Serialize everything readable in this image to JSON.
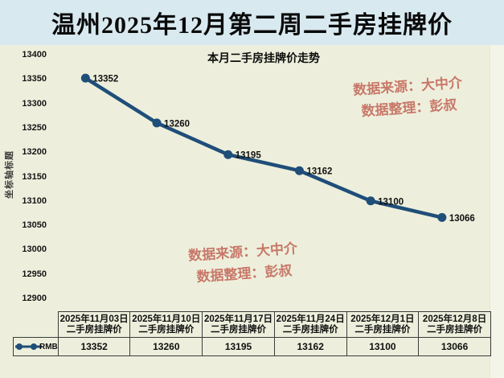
{
  "page": {
    "title": "温州2025年12月第二周二手房挂牌价"
  },
  "chart": {
    "title": "本月二手房挂牌价走势",
    "y_axis_title": "坐标轴标题",
    "legend_series": "RMB",
    "watermark": {
      "line1": "数据来源：大中介",
      "line2": "数据整理：彭叔"
    }
  },
  "chart_data": {
    "type": "line",
    "title": "本月二手房挂牌价走势",
    "categories": [
      "2025年11月03日",
      "2025年11月10日",
      "2025年11月17日",
      "2025年11月24日",
      "2025年12月1日",
      "2025年12月8日"
    ],
    "category_subtitle": "二手房挂牌价",
    "series": [
      {
        "name": "RMB",
        "values": [
          13352,
          13260,
          13195,
          13162,
          13100,
          13066
        ]
      }
    ],
    "ylim": [
      12900,
      13400
    ],
    "y_ticks": [
      13400,
      13350,
      13300,
      13250,
      13200,
      13150,
      13100,
      13050,
      13000,
      12950,
      12900
    ],
    "grid": false,
    "legend_position": "data-table-left",
    "line_color": "#1f4e79",
    "label_color": "#111111"
  },
  "table": {
    "columns": [
      {
        "header_line1": "2025年11月03日",
        "header_line2": "二手房挂牌价",
        "value": "13352"
      },
      {
        "header_line1": "2025年11月10日",
        "header_line2": "二手房挂牌价",
        "value": "13260"
      },
      {
        "header_line1": "2025年11月17日",
        "header_line2": "二手房挂牌价",
        "value": "13195"
      },
      {
        "header_line1": "2025年11月24日",
        "header_line2": "二手房挂牌价",
        "value": "13162"
      },
      {
        "header_line1": "2025年12月1日",
        "header_line2": "二手房挂牌价",
        "value": "13100"
      },
      {
        "header_line1": "2025年12月8日",
        "header_line2": "二手房挂牌价",
        "value": "13066"
      }
    ]
  },
  "colors": {
    "title_band_bg": "#d8e9f0",
    "page_bg": "#edefdc",
    "line": "#1f4e79",
    "watermark": "#c4685a",
    "table_border": "#3c3c3c"
  }
}
